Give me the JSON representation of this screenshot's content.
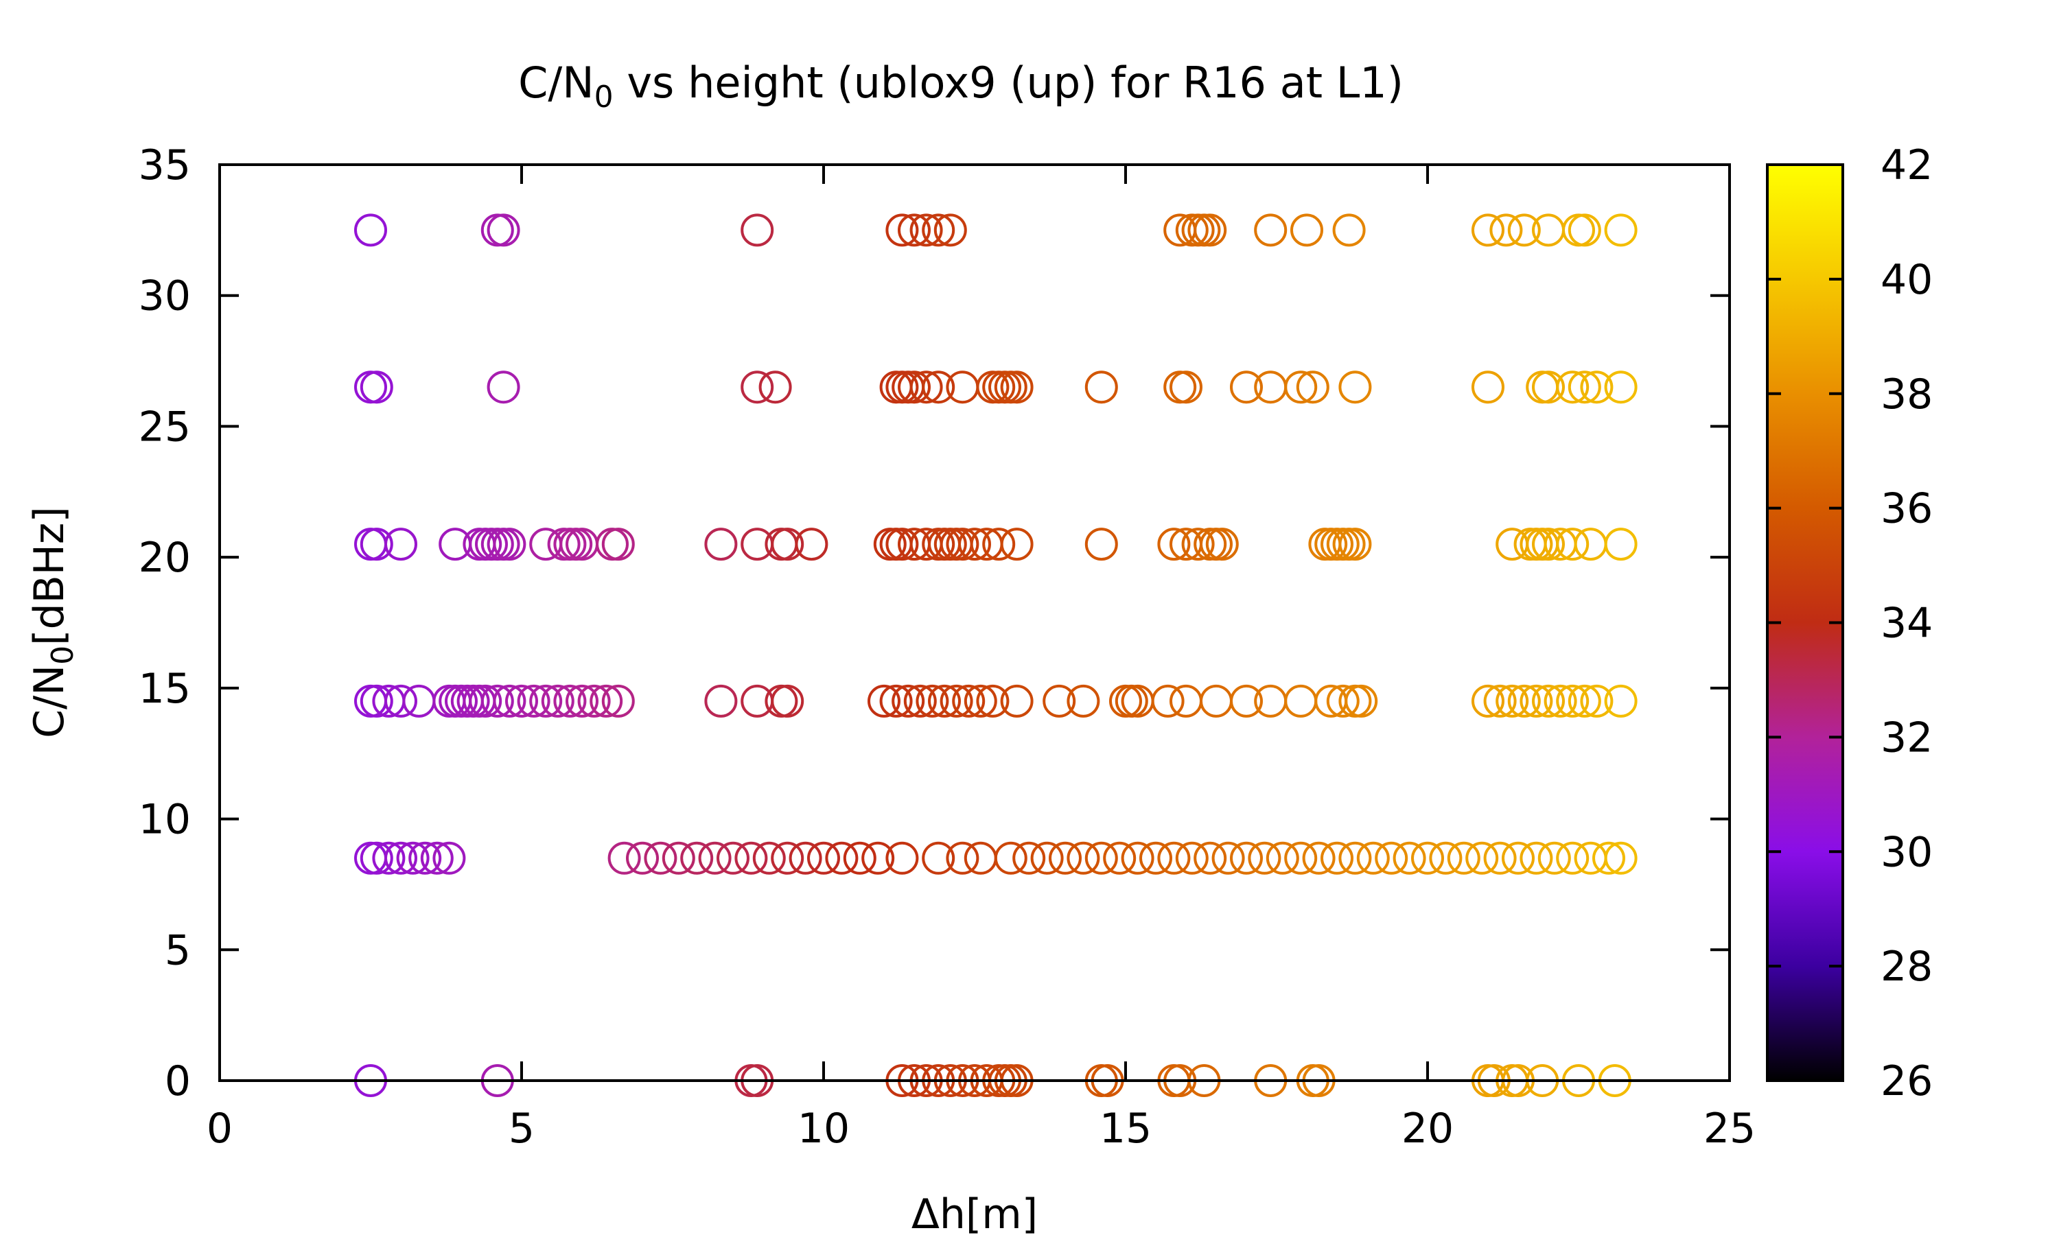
{
  "chart_data": {
    "type": "scatter",
    "title": "C/N0 vs height (ublox9 (up) for R16 at L1)",
    "title_parts": {
      "prefix": "C/N",
      "subscript": "0",
      "suffix": " vs height (ublox9 (up) for R16 at L1)"
    },
    "xlabel": "Δh[m]",
    "ylabel": "C/N0[dBHz]",
    "ylabel_parts": {
      "prefix": "C/N",
      "subscript": "0",
      "suffix": "[dBHz]"
    },
    "xlim": [
      0,
      25
    ],
    "ylim": [
      0,
      35
    ],
    "xticks": [
      "0",
      "5",
      "10",
      "15",
      "20",
      "25"
    ],
    "yticks": [
      "0",
      "5",
      "10",
      "15",
      "20",
      "25",
      "30",
      "35"
    ],
    "colorbar": {
      "range": [
        26,
        42
      ],
      "ticks": [
        "26",
        "28",
        "30",
        "32",
        "34",
        "36",
        "38",
        "40",
        "42"
      ],
      "palette": [
        "#000000",
        "#3c00a0",
        "#8a0ee8",
        "#b2229a",
        "#c02c14",
        "#d45a00",
        "#e98f00",
        "#f6c800",
        "#ffff00"
      ]
    },
    "color_by": "height (colorbar)",
    "marker": "open circle",
    "grid": false,
    "series": [
      {
        "y": 32.5,
        "x": [
          2.5,
          4.6,
          4.7,
          8.9,
          11.3,
          11.5,
          11.7,
          11.9,
          12.1,
          15.9,
          16.1,
          16.2,
          16.3,
          16.4,
          17.4,
          18.0,
          18.7,
          21.0,
          21.3,
          21.6,
          22.0,
          22.5,
          22.6,
          23.2
        ]
      },
      {
        "y": 26.5,
        "x": [
          2.5,
          2.6,
          4.7,
          8.9,
          9.2,
          11.2,
          11.3,
          11.4,
          11.5,
          11.7,
          11.9,
          12.3,
          12.8,
          12.9,
          13.0,
          13.1,
          13.2,
          14.6,
          15.9,
          16.0,
          17.0,
          17.4,
          17.9,
          18.1,
          18.8,
          21.0,
          21.9,
          22.0,
          22.4,
          22.6,
          22.8,
          23.2
        ]
      },
      {
        "y": 20.5,
        "x": [
          2.5,
          2.6,
          3.0,
          3.9,
          4.3,
          4.4,
          4.5,
          4.6,
          4.7,
          4.8,
          5.4,
          5.7,
          5.8,
          5.9,
          6.0,
          6.5,
          6.6,
          8.3,
          8.9,
          9.3,
          9.4,
          9.8,
          11.1,
          11.2,
          11.3,
          11.5,
          11.7,
          11.9,
          12.0,
          12.1,
          12.2,
          12.3,
          12.5,
          12.7,
          12.9,
          13.2,
          14.6,
          15.8,
          16.0,
          16.2,
          16.4,
          16.5,
          16.6,
          18.3,
          18.4,
          18.5,
          18.6,
          18.7,
          18.8,
          21.4,
          21.7,
          21.8,
          21.9,
          22.0,
          22.2,
          22.4,
          22.7,
          23.2
        ]
      },
      {
        "y": 14.5,
        "x": [
          2.5,
          2.6,
          2.8,
          3.0,
          3.3,
          3.8,
          3.9,
          4.0,
          4.1,
          4.2,
          4.3,
          4.4,
          4.6,
          4.8,
          5.0,
          5.2,
          5.4,
          5.6,
          5.8,
          6.0,
          6.2,
          6.4,
          6.6,
          8.3,
          8.9,
          9.3,
          9.4,
          11.0,
          11.2,
          11.4,
          11.6,
          11.8,
          12.0,
          12.2,
          12.4,
          12.6,
          12.8,
          13.2,
          13.9,
          14.3,
          15.0,
          15.1,
          15.2,
          15.7,
          16.0,
          16.5,
          17.0,
          17.4,
          17.9,
          18.4,
          18.6,
          18.8,
          18.9,
          21.0,
          21.2,
          21.4,
          21.6,
          21.8,
          22.0,
          22.2,
          22.4,
          22.6,
          22.8,
          23.2
        ]
      },
      {
        "y": 8.5,
        "x": [
          2.5,
          2.6,
          2.8,
          3.0,
          3.2,
          3.4,
          3.6,
          3.8,
          6.7,
          7.0,
          7.3,
          7.6,
          7.9,
          8.2,
          8.5,
          8.8,
          9.1,
          9.4,
          9.7,
          10.0,
          10.3,
          10.6,
          10.9,
          11.3,
          11.9,
          12.3,
          12.6,
          13.1,
          13.4,
          13.7,
          14.0,
          14.3,
          14.6,
          14.9,
          15.2,
          15.5,
          15.8,
          16.1,
          16.4,
          16.7,
          17.0,
          17.3,
          17.6,
          17.9,
          18.2,
          18.5,
          18.8,
          19.1,
          19.4,
          19.7,
          20.0,
          20.3,
          20.6,
          20.9,
          21.2,
          21.5,
          21.8,
          22.1,
          22.4,
          22.7,
          23.0,
          23.2
        ]
      },
      {
        "y": 0,
        "x": [
          2.5,
          4.6,
          8.8,
          8.9,
          11.3,
          11.5,
          11.7,
          11.9,
          12.1,
          12.3,
          12.5,
          12.7,
          12.9,
          13.0,
          13.1,
          13.2,
          14.6,
          14.7,
          15.8,
          15.9,
          16.3,
          17.4,
          18.1,
          18.2,
          21.0,
          21.1,
          21.4,
          21.5,
          21.9,
          22.5,
          23.1
        ]
      }
    ]
  }
}
